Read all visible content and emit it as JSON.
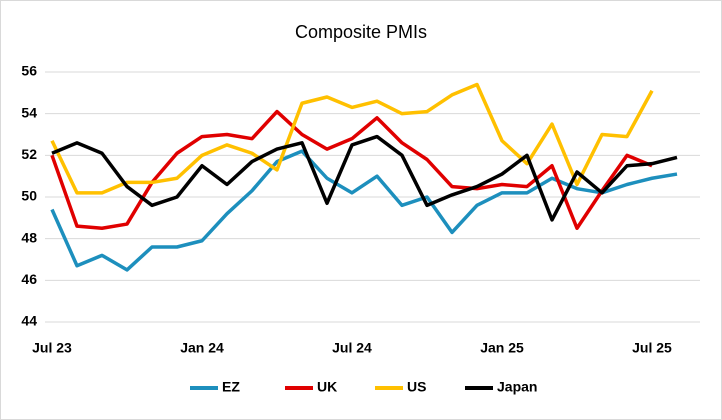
{
  "chart_data": {
    "type": "line",
    "title": "Composite PMIs",
    "categories": [
      "Jul 23",
      null,
      null,
      null,
      null,
      null,
      "Jan 24",
      null,
      null,
      null,
      null,
      null,
      "Jul 24",
      null,
      null,
      null,
      null,
      null,
      "Jan 25",
      null,
      null,
      null,
      null,
      null,
      "Jul 25",
      null
    ],
    "series": [
      {
        "name": "EZ",
        "color": "#1d8fbd",
        "values": [
          49.4,
          46.7,
          47.2,
          46.5,
          47.6,
          47.6,
          47.9,
          49.2,
          50.3,
          51.7,
          52.2,
          50.9,
          50.2,
          51.0,
          49.6,
          50.0,
          48.3,
          49.6,
          50.2,
          50.2,
          50.9,
          50.4,
          50.2,
          50.6,
          50.9,
          51.1
        ]
      },
      {
        "name": "UK",
        "color": "#e00000",
        "values": [
          52.0,
          48.6,
          48.5,
          48.7,
          50.7,
          52.1,
          52.9,
          53.0,
          52.8,
          54.1,
          53.0,
          52.3,
          52.8,
          53.8,
          52.6,
          51.8,
          50.5,
          50.4,
          50.6,
          50.5,
          51.5,
          48.5,
          50.3,
          52.0,
          51.5,
          null
        ]
      },
      {
        "name": "US",
        "color": "#ffc000",
        "values": [
          52.7,
          50.2,
          50.2,
          50.7,
          50.7,
          50.9,
          52.0,
          52.5,
          52.1,
          51.3,
          54.5,
          54.8,
          54.3,
          54.6,
          54.0,
          54.1,
          54.9,
          55.4,
          52.7,
          51.6,
          53.5,
          50.6,
          53.0,
          52.9,
          55.1,
          null
        ]
      },
      {
        "name": "Japan",
        "color": "#000000",
        "values": [
          52.1,
          52.6,
          52.1,
          50.5,
          49.6,
          50.0,
          51.5,
          50.6,
          51.7,
          52.3,
          52.6,
          49.7,
          52.5,
          52.9,
          52.0,
          49.6,
          50.1,
          50.5,
          51.1,
          52.0,
          48.9,
          51.2,
          50.2,
          51.5,
          51.6,
          51.9
        ]
      }
    ],
    "ylim": [
      44,
      56
    ],
    "yticks": [
      44,
      46,
      48,
      50,
      52,
      54,
      56
    ],
    "grid": true,
    "legend": "bottom"
  }
}
